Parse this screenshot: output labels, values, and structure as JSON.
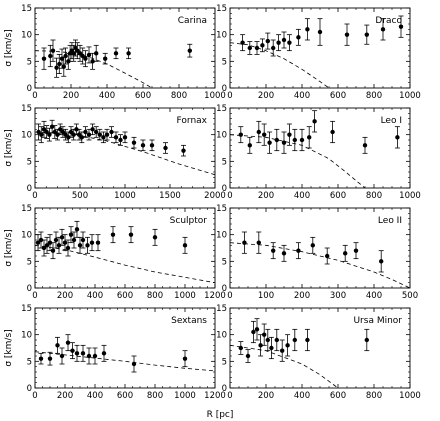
{
  "figure": {
    "xlabel": "R [pc]",
    "ylabel": "σ [km/s]"
  },
  "chart_data": [
    {
      "type": "scatter",
      "title": "Carina",
      "xlim": [
        0,
        1000
      ],
      "ylim": [
        0,
        15
      ],
      "xticks": [
        0,
        200,
        400,
        600,
        800,
        1000
      ],
      "yticks": [
        0,
        5,
        10,
        15
      ],
      "series": [
        {
          "x": [
            50,
            85,
            100,
            120,
            135,
            150,
            160,
            170,
            185,
            195,
            205,
            215,
            225,
            235,
            250,
            265,
            280,
            300,
            320,
            340,
            390,
            450,
            520,
            860
          ],
          "y": [
            5.5,
            6.0,
            7.0,
            3.8,
            4.5,
            5.5,
            4.0,
            6.0,
            5.0,
            6.5,
            7.0,
            6.5,
            7.5,
            7.0,
            6.5,
            6.0,
            5.5,
            6.2,
            5.0,
            6.5,
            5.5,
            6.5,
            6.5,
            7.0
          ],
          "err": [
            2.0,
            2.0,
            2.0,
            1.8,
            1.8,
            1.8,
            1.8,
            1.5,
            1.5,
            1.5,
            1.5,
            1.5,
            1.5,
            1.5,
            1.5,
            1.5,
            1.5,
            1.5,
            1.5,
            1.5,
            1.0,
            1.0,
            1.0,
            1.2
          ]
        }
      ],
      "model": {
        "x": [
          0,
          100,
          200,
          300,
          400,
          500,
          600,
          650
        ],
        "y": [
          7.0,
          6.9,
          6.6,
          5.8,
          4.5,
          2.8,
          1.0,
          0.0
        ]
      }
    },
    {
      "type": "scatter",
      "title": "Draco",
      "xlim": [
        0,
        1000
      ],
      "ylim": [
        0,
        15
      ],
      "xticks": [
        0,
        200,
        400,
        600,
        800,
        1000
      ],
      "yticks": [
        0,
        5,
        10,
        15
      ],
      "series": [
        {
          "x": [
            70,
            110,
            150,
            180,
            210,
            240,
            270,
            300,
            330,
            380,
            430,
            500,
            650,
            760,
            850,
            950
          ],
          "y": [
            8.5,
            7.5,
            7.5,
            8.0,
            8.8,
            7.5,
            8.5,
            9.0,
            8.5,
            9.5,
            11.0,
            10.5,
            10.0,
            10.0,
            11.0,
            11.5
          ],
          "err": [
            1.5,
            1.2,
            1.2,
            1.2,
            1.5,
            1.5,
            1.5,
            1.5,
            1.5,
            1.5,
            2.0,
            2.5,
            2.0,
            1.8,
            2.0,
            2.0
          ]
        }
      ],
      "model": {
        "x": [
          0,
          100,
          200,
          300,
          400,
          500,
          550
        ],
        "y": [
          8.5,
          8.1,
          7.0,
          5.5,
          3.5,
          1.2,
          0.0
        ]
      }
    },
    {
      "type": "scatter",
      "title": "Fornax",
      "xlim": [
        0,
        2000
      ],
      "ylim": [
        0,
        15
      ],
      "xticks": [
        0,
        500,
        1000,
        1500,
        2000
      ],
      "yticks": [
        0,
        5,
        10,
        15
      ],
      "series": [
        {
          "x": [
            40,
            70,
            100,
            130,
            160,
            190,
            220,
            250,
            280,
            310,
            340,
            370,
            400,
            430,
            460,
            490,
            520,
            560,
            600,
            640,
            680,
            720,
            760,
            800,
            850,
            900,
            950,
            1000,
            1100,
            1200,
            1300,
            1450,
            1650
          ],
          "y": [
            10.5,
            10.0,
            11.0,
            10.5,
            10.0,
            11.5,
            10.5,
            10.0,
            11.0,
            10.5,
            10.0,
            9.5,
            10.5,
            10.0,
            11.0,
            10.0,
            9.5,
            10.5,
            10.0,
            11.0,
            10.5,
            10.0,
            9.5,
            10.0,
            10.5,
            9.5,
            9.0,
            9.5,
            8.5,
            8.0,
            8.0,
            7.5,
            7.0
          ],
          "err": [
            1.5,
            1.5,
            1.5,
            1.2,
            1.2,
            1.2,
            1.2,
            1.0,
            1.0,
            1.0,
            1.0,
            1.0,
            1.0,
            1.0,
            1.0,
            1.0,
            1.0,
            1.0,
            1.0,
            1.0,
            1.0,
            1.0,
            1.0,
            1.0,
            1.0,
            1.0,
            1.0,
            1.0,
            1.0,
            1.0,
            1.0,
            1.0,
            1.0
          ]
        }
      ],
      "model": {
        "x": [
          0,
          400,
          800,
          1200,
          1600,
          2000
        ],
        "y": [
          10.5,
          10.2,
          8.8,
          6.8,
          4.5,
          2.5
        ]
      }
    },
    {
      "type": "scatter",
      "title": "Leo I",
      "xlim": [
        0,
        1000
      ],
      "ylim": [
        0,
        15
      ],
      "xticks": [
        0,
        200,
        400,
        600,
        800,
        1000
      ],
      "yticks": [
        0,
        5,
        10,
        15
      ],
      "series": [
        {
          "x": [
            60,
            110,
            160,
            190,
            220,
            260,
            300,
            330,
            360,
            400,
            440,
            470,
            570,
            750,
            930
          ],
          "y": [
            10.0,
            8.0,
            10.5,
            10.0,
            8.5,
            9.0,
            8.5,
            10.0,
            9.0,
            9.0,
            9.5,
            12.5,
            10.5,
            8.0,
            9.5
          ],
          "err": [
            1.5,
            1.5,
            2.0,
            2.0,
            2.0,
            2.0,
            2.0,
            2.0,
            2.0,
            2.0,
            2.0,
            2.0,
            2.0,
            1.5,
            2.0
          ]
        }
      ],
      "model": {
        "x": [
          0,
          200,
          400,
          550,
          650,
          750
        ],
        "y": [
          10.0,
          9.5,
          8.0,
          5.5,
          2.8,
          0.0
        ]
      }
    },
    {
      "type": "scatter",
      "title": "Sculptor",
      "xlim": [
        0,
        1200
      ],
      "ylim": [
        0,
        15
      ],
      "xticks": [
        0,
        200,
        400,
        600,
        800,
        1000,
        1200
      ],
      "yticks": [
        0,
        5,
        10,
        15
      ],
      "series": [
        {
          "x": [
            20,
            40,
            60,
            80,
            100,
            120,
            140,
            160,
            180,
            200,
            220,
            240,
            260,
            280,
            300,
            320,
            350,
            380,
            420,
            520,
            640,
            800,
            1000
          ],
          "y": [
            8.5,
            9.0,
            7.5,
            8.0,
            8.5,
            7.0,
            9.0,
            8.0,
            9.5,
            8.5,
            7.5,
            10.0,
            9.0,
            11.0,
            8.0,
            9.0,
            8.0,
            8.5,
            8.5,
            10.0,
            10.0,
            9.5,
            8.0
          ],
          "err": [
            1.5,
            1.5,
            1.5,
            1.5,
            1.5,
            1.5,
            1.5,
            1.5,
            1.5,
            1.5,
            1.5,
            1.5,
            1.5,
            1.5,
            1.5,
            1.5,
            1.5,
            1.5,
            1.5,
            1.5,
            1.5,
            1.5,
            1.5
          ]
        }
      ],
      "model": {
        "x": [
          0,
          200,
          400,
          600,
          800,
          1000,
          1200
        ],
        "y": [
          8.0,
          7.2,
          5.8,
          4.3,
          3.0,
          2.0,
          1.0
        ]
      }
    },
    {
      "type": "scatter",
      "title": "Leo II",
      "xlim": [
        0,
        500
      ],
      "ylim": [
        0,
        15
      ],
      "xticks": [
        0,
        100,
        200,
        300,
        400,
        500
      ],
      "yticks": [
        0,
        5,
        10,
        15
      ],
      "series": [
        {
          "x": [
            40,
            80,
            120,
            150,
            190,
            230,
            270,
            320,
            350,
            420
          ],
          "y": [
            8.5,
            8.5,
            7.0,
            6.5,
            7.0,
            8.0,
            6.0,
            6.5,
            7.0,
            5.0
          ],
          "err": [
            2.0,
            2.0,
            1.5,
            1.5,
            1.5,
            1.5,
            1.5,
            1.5,
            1.5,
            2.0
          ]
        }
      ],
      "model": {
        "x": [
          0,
          100,
          200,
          300,
          400,
          450,
          500
        ],
        "y": [
          8.5,
          8.0,
          6.8,
          5.2,
          3.0,
          1.6,
          0.0
        ]
      }
    },
    {
      "type": "scatter",
      "title": "Sextans",
      "xlim": [
        0,
        1200
      ],
      "ylim": [
        0,
        15
      ],
      "xticks": [
        0,
        200,
        400,
        600,
        800,
        1000,
        1200
      ],
      "yticks": [
        0,
        5,
        10,
        15
      ],
      "series": [
        {
          "x": [
            40,
            100,
            150,
            180,
            220,
            250,
            280,
            320,
            360,
            400,
            460,
            660,
            1000
          ],
          "y": [
            5.5,
            5.5,
            8.0,
            6.0,
            8.5,
            7.0,
            6.5,
            6.5,
            6.0,
            6.0,
            6.5,
            4.5,
            5.5
          ],
          "err": [
            1.0,
            1.2,
            1.5,
            1.5,
            1.5,
            1.5,
            1.5,
            1.5,
            1.5,
            1.5,
            1.5,
            1.5,
            1.5
          ]
        }
      ],
      "model": {
        "x": [
          0,
          200,
          400,
          600,
          800,
          1000,
          1200
        ],
        "y": [
          6.8,
          6.2,
          5.6,
          5.0,
          4.3,
          3.7,
          3.2
        ]
      }
    },
    {
      "type": "scatter",
      "title": "Ursa Minor",
      "xlim": [
        0,
        1000
      ],
      "ylim": [
        0,
        15
      ],
      "xticks": [
        0,
        200,
        400,
        600,
        800,
        1000
      ],
      "yticks": [
        0,
        5,
        10,
        15
      ],
      "series": [
        {
          "x": [
            60,
            100,
            130,
            150,
            170,
            190,
            210,
            230,
            260,
            290,
            320,
            360,
            430,
            760
          ],
          "y": [
            7.5,
            6.0,
            10.5,
            11.0,
            8.0,
            10.0,
            9.0,
            7.5,
            9.0,
            7.0,
            8.0,
            9.0,
            9.0,
            9.0
          ],
          "err": [
            1.2,
            1.2,
            2.0,
            2.0,
            2.0,
            2.0,
            2.0,
            2.0,
            2.0,
            2.0,
            2.0,
            2.0,
            2.0,
            2.0
          ]
        }
      ],
      "model": {
        "x": [
          0,
          200,
          400,
          500,
          600
        ],
        "y": [
          8.0,
          7.0,
          4.5,
          2.5,
          0.0
        ]
      }
    }
  ]
}
